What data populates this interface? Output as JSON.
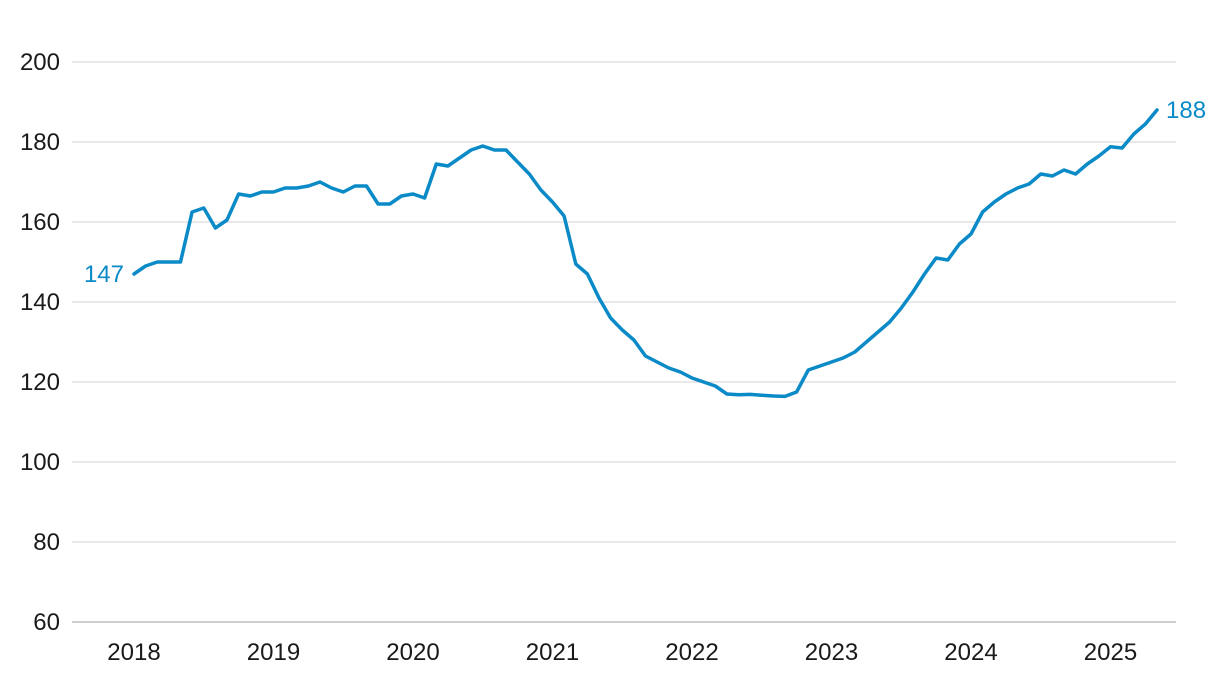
{
  "chart_data": {
    "type": "line",
    "title": "",
    "xlabel": "",
    "ylabel": "",
    "ylim": [
      60,
      200
    ],
    "y_ticks": [
      "60",
      "80",
      "100",
      "120",
      "140",
      "160",
      "180",
      "200"
    ],
    "x_ticks": [
      "2018",
      "2019",
      "2020",
      "2021",
      "2022",
      "2023",
      "2024",
      "2025"
    ],
    "x_start": "2018-01",
    "x_end": "2025-04",
    "grid": true,
    "line_color": "#0a8ac7",
    "series": [
      {
        "name": "",
        "values": [
          147,
          149,
          150,
          150,
          150,
          162.5,
          163.5,
          158.5,
          160.5,
          167,
          166.5,
          167.5,
          167.5,
          168.5,
          168.5,
          169,
          170,
          168.5,
          167.5,
          169,
          169,
          164.5,
          164.5,
          166.5,
          167,
          166,
          174.5,
          174,
          176,
          178,
          179,
          178,
          178,
          175,
          172,
          168,
          165,
          161.5,
          149.5,
          147,
          141,
          136,
          133,
          130.5,
          126.5,
          125,
          123.5,
          122.5,
          121,
          120,
          119,
          117,
          116.8,
          116.9,
          116.7,
          116.5,
          116.4,
          117.5,
          123,
          124,
          125,
          126,
          127.5,
          130,
          132.5,
          135,
          138.5,
          142.5,
          147,
          151,
          150.5,
          154.5,
          157,
          162.5,
          165,
          167,
          168.5,
          169.5,
          172,
          171.5,
          173,
          172,
          174.5,
          176.5,
          178.8,
          178.5,
          182,
          184.5,
          188
        ]
      }
    ],
    "start_label": "147",
    "end_label": "188"
  }
}
